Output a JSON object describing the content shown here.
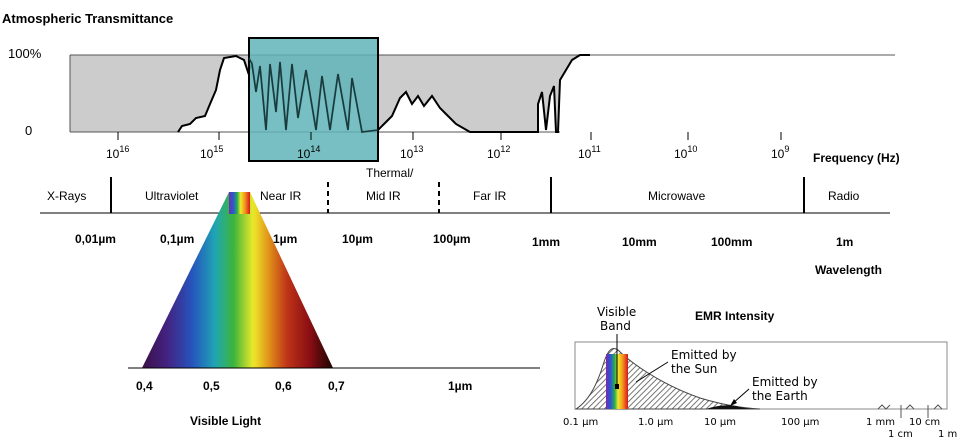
{
  "transmittance": {
    "title": "Atmospheric Transmittance",
    "y_top": "100%",
    "y_bottom": "0",
    "freq_ticks": [
      {
        "base": "10",
        "exp": "16"
      },
      {
        "base": "10",
        "exp": "15"
      },
      {
        "base": "10",
        "exp": "14"
      },
      {
        "base": "10",
        "exp": "13"
      },
      {
        "base": "10",
        "exp": "12"
      },
      {
        "base": "10",
        "exp": "11"
      },
      {
        "base": "10",
        "exp": "10"
      },
      {
        "base": "10",
        "exp": "9"
      }
    ],
    "freq_label": "Frequency (Hz)",
    "highlight_color": "#5fb4b8"
  },
  "bands": {
    "labels": [
      "X-Rays",
      "Ultraviolet",
      "Near IR",
      "Thermal/",
      "Mid IR",
      "Far IR",
      "Microwave",
      "Radio"
    ]
  },
  "wavelength": {
    "ticks": [
      "0,01µm",
      "0,1µm",
      "1µm",
      "10µm",
      "100µm",
      "1mm",
      "10mm",
      "100mm",
      "1m"
    ],
    "label": "Wavelength"
  },
  "visible": {
    "ticks": [
      "0,4",
      "0,5",
      "0,6",
      "0,7",
      "1µm"
    ],
    "label": "Visible Light"
  },
  "emr": {
    "title": "EMR Intensity",
    "visible_band": [
      "Visible",
      "Band"
    ],
    "sun": [
      "Emitted by",
      "the Sun"
    ],
    "earth": [
      "Emitted by",
      "the Earth"
    ],
    "ticks": [
      "0.1 µm",
      "1.0 µm",
      "10 µm",
      "100 µm",
      "1 mm",
      "10 cm",
      "1 cm",
      "1 m"
    ]
  }
}
